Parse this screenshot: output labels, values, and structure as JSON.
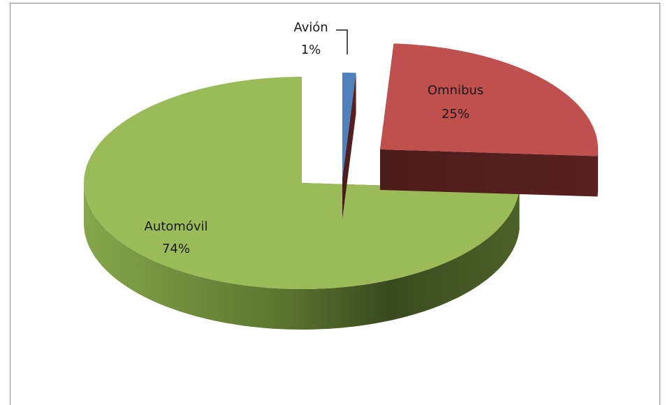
{
  "chart_data": {
    "type": "pie3d",
    "categories": [
      "Avión",
      "Omnibus",
      "Automóvil"
    ],
    "values": [
      1,
      25,
      74
    ],
    "value_labels": [
      "1%",
      "25%",
      "74%"
    ],
    "colors": [
      "#4f81bd",
      "#c0504d",
      "#9bbb59"
    ]
  }
}
